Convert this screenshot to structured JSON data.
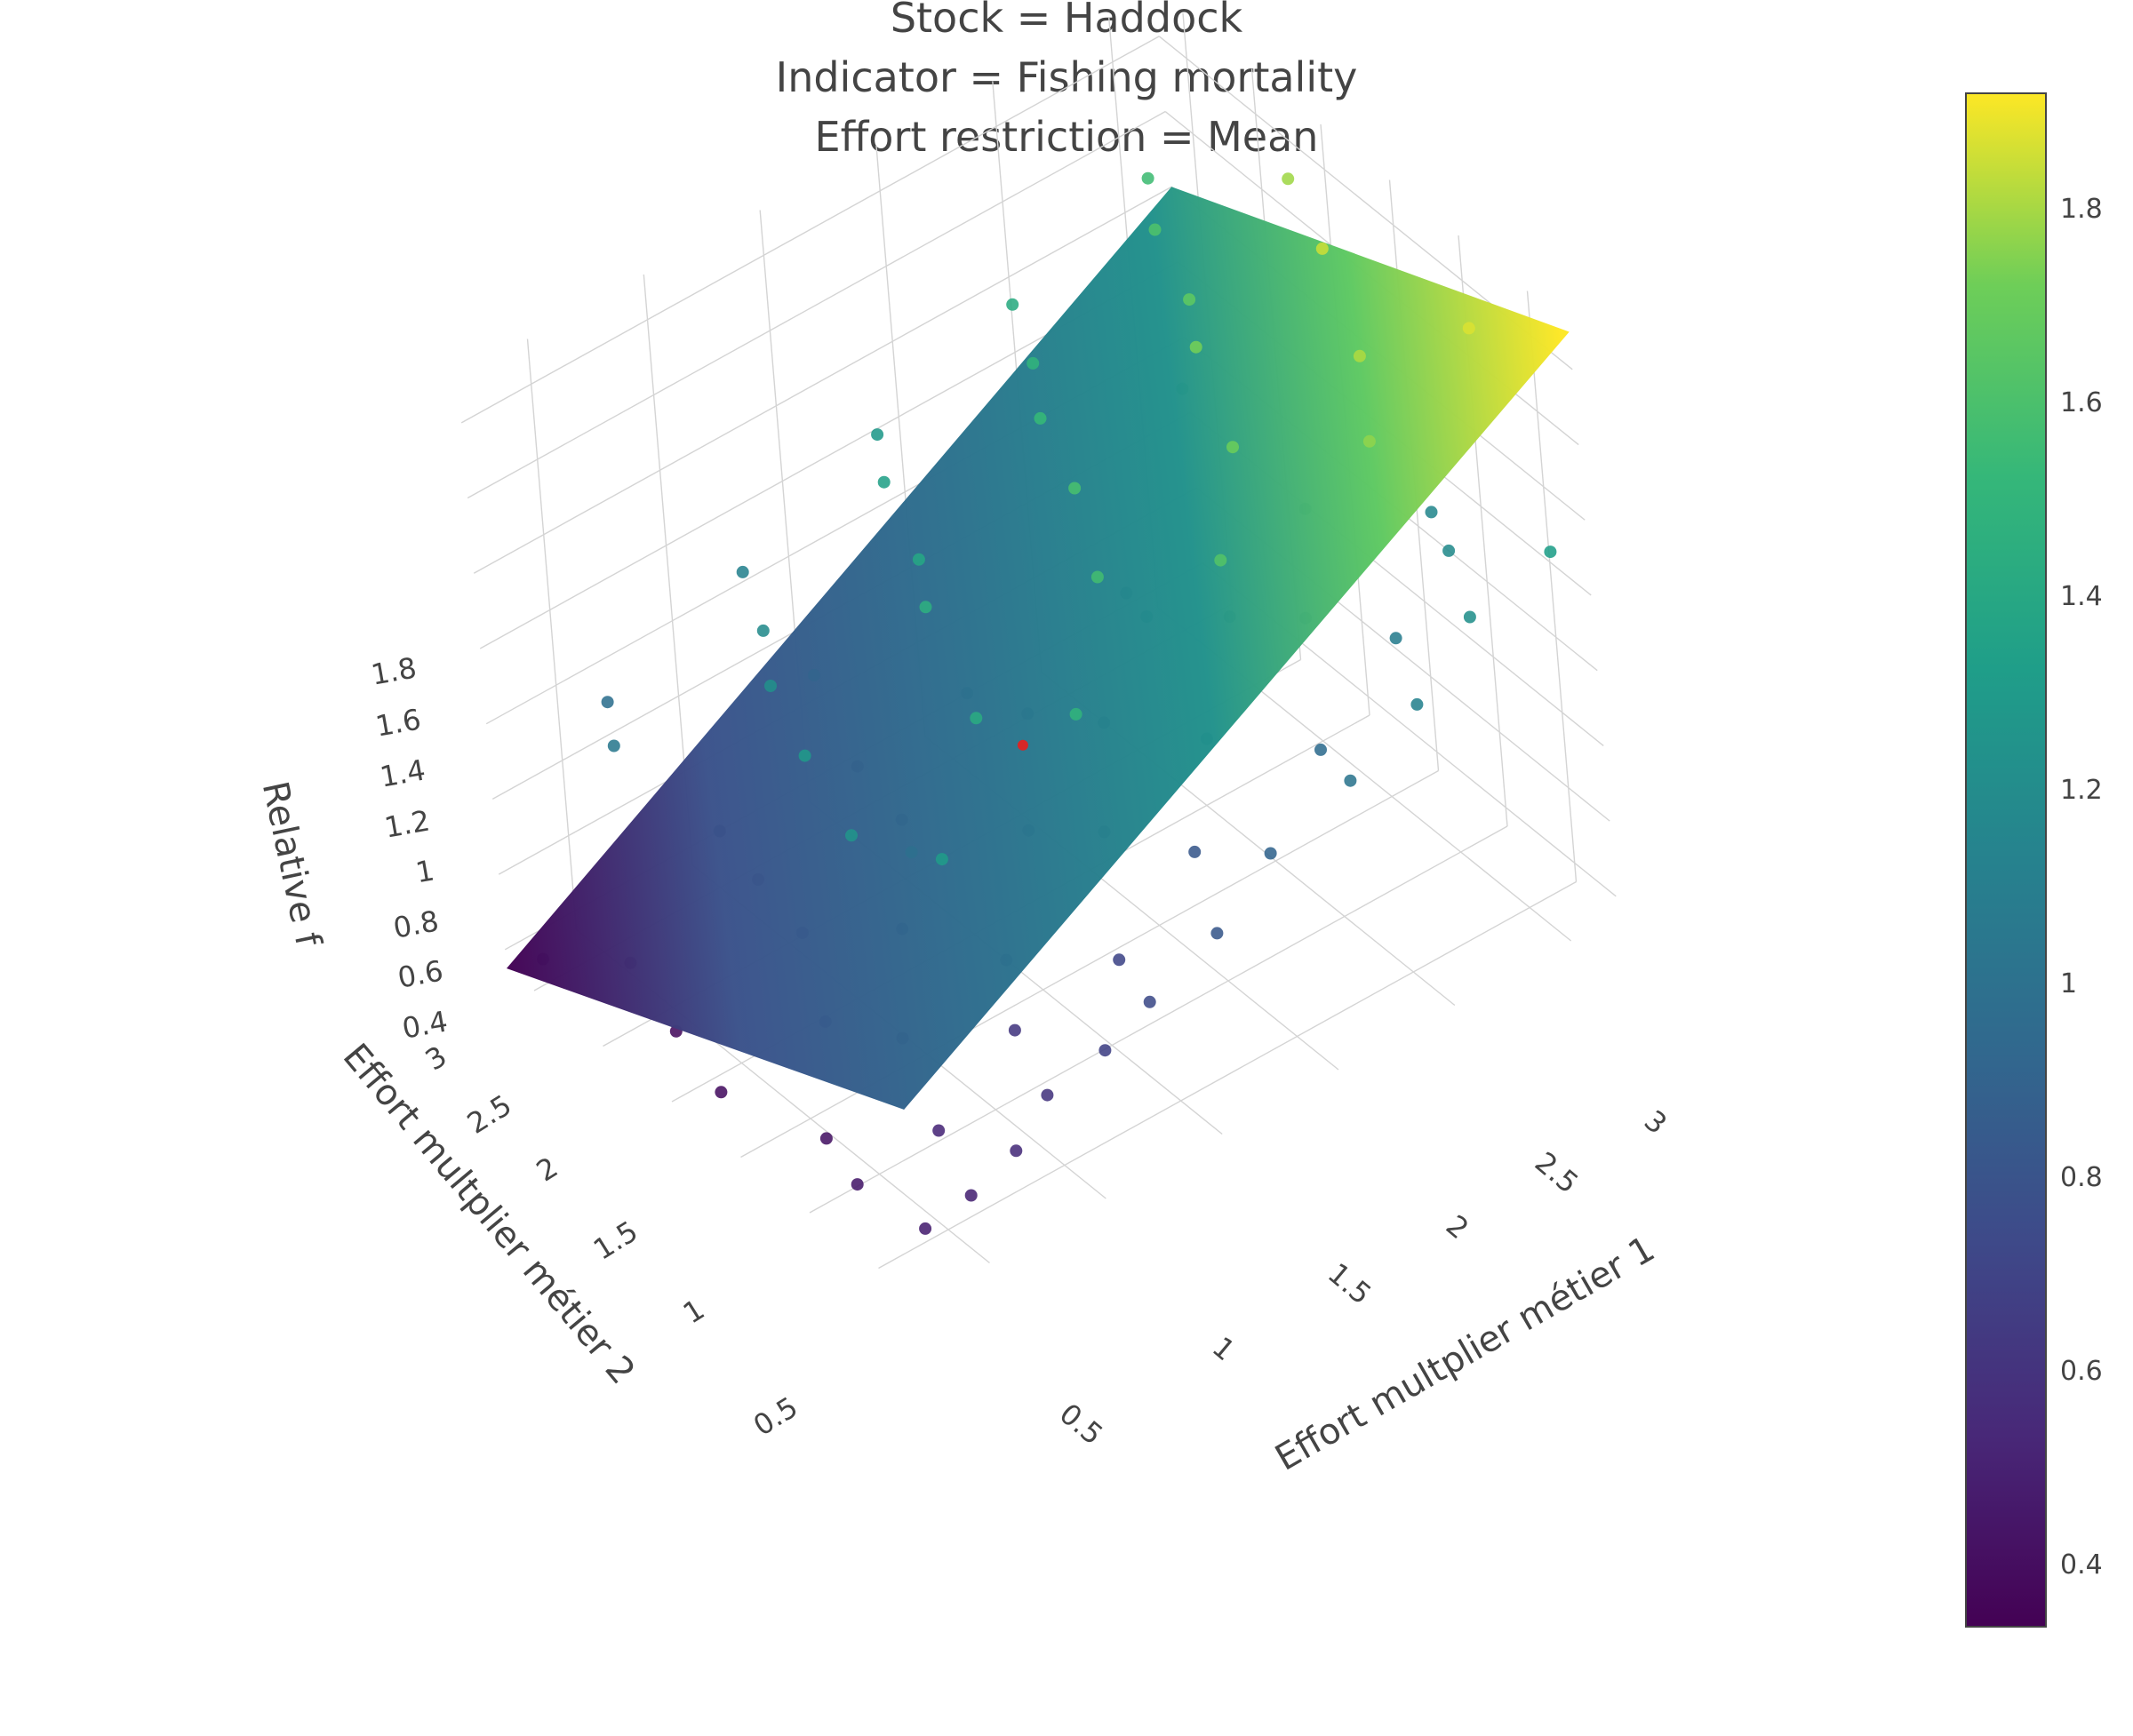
{
  "chart_data": {
    "type": "scatter",
    "title_lines": [
      "Stock = Haddock",
      "Indicator = Fishing mortality",
      "Effort restriction = Mean"
    ],
    "xlabel": "Effort multplier métier 1",
    "ylabel": "Effort multplier métier 2",
    "zlabel": "Relative f",
    "x_ticks": [
      "0.5",
      "1",
      "1.5",
      "2",
      "2.5",
      "3"
    ],
    "y_ticks": [
      "0.5",
      "1",
      "1.5",
      "2",
      "2.5",
      "3"
    ],
    "z_ticks": [
      "0.4",
      "0.6",
      "0.8",
      "1",
      "1.2",
      "1.4",
      "1.6",
      "1.8"
    ],
    "xlim": [
      0.2,
      3.2
    ],
    "ylim": [
      0.2,
      3.2
    ],
    "zlim": [
      0.35,
      1.92
    ],
    "surface": {
      "name": "fitted plane",
      "corners": [
        {
          "x": 0.2,
          "y": 0.2,
          "z": 0.86
        },
        {
          "x": 3.2,
          "y": 0.2,
          "z": 1.9
        },
        {
          "x": 3.2,
          "y": 3.2,
          "z": 1.4
        },
        {
          "x": 0.2,
          "y": 3.2,
          "z": 0.35
        }
      ]
    },
    "colorscale": "Viridis",
    "colorbar": {
      "range": [
        0.33,
        1.91
      ],
      "ticks": [
        "0.4",
        "0.6",
        "0.8",
        "1",
        "1.2",
        "1.4",
        "1.6",
        "1.8"
      ]
    },
    "highlight_point": {
      "x": 1.5,
      "y": 1.5,
      "z": 1.0,
      "color": "#d62728"
    },
    "points": [
      {
        "x": 0.3,
        "y": 0.3,
        "z": 0.48
      },
      {
        "x": 0.5,
        "y": 0.3,
        "z": 0.5
      },
      {
        "x": 0.7,
        "y": 0.3,
        "z": 0.55
      },
      {
        "x": 0.9,
        "y": 0.4,
        "z": 0.6
      },
      {
        "x": 1.1,
        "y": 0.3,
        "z": 0.68
      },
      {
        "x": 1.3,
        "y": 0.3,
        "z": 0.74
      },
      {
        "x": 1.6,
        "y": 0.3,
        "z": 0.82
      },
      {
        "x": 1.9,
        "y": 0.4,
        "z": 0.9
      },
      {
        "x": 2.2,
        "y": 0.3,
        "z": 1.02
      },
      {
        "x": 2.5,
        "y": 0.3,
        "z": 1.12
      },
      {
        "x": 2.8,
        "y": 0.4,
        "z": 1.22
      },
      {
        "x": 3.1,
        "y": 0.3,
        "z": 1.32
      },
      {
        "x": 0.3,
        "y": 0.8,
        "z": 0.45
      },
      {
        "x": 0.6,
        "y": 0.7,
        "z": 0.52
      },
      {
        "x": 1.0,
        "y": 0.8,
        "z": 0.62
      },
      {
        "x": 1.4,
        "y": 0.7,
        "z": 0.7
      },
      {
        "x": 1.8,
        "y": 0.8,
        "z": 0.82
      },
      {
        "x": 2.3,
        "y": 0.7,
        "z": 0.95
      },
      {
        "x": 2.7,
        "y": 0.8,
        "z": 1.08
      },
      {
        "x": 3.0,
        "y": 0.9,
        "z": 1.18
      },
      {
        "x": 0.4,
        "y": 1.2,
        "z": 0.42
      },
      {
        "x": 0.8,
        "y": 1.3,
        "z": 0.52
      },
      {
        "x": 1.2,
        "y": 1.2,
        "z": 0.62
      },
      {
        "x": 1.7,
        "y": 1.3,
        "z": 0.76
      },
      {
        "x": 2.1,
        "y": 1.2,
        "z": 0.9
      },
      {
        "x": 2.6,
        "y": 1.3,
        "z": 1.02
      },
      {
        "x": 3.1,
        "y": 1.2,
        "z": 1.16
      },
      {
        "x": 0.3,
        "y": 1.8,
        "z": 0.4
      },
      {
        "x": 0.7,
        "y": 1.7,
        "z": 0.48
      },
      {
        "x": 1.1,
        "y": 1.8,
        "z": 0.56
      },
      {
        "x": 1.6,
        "y": 1.7,
        "z": 0.68
      },
      {
        "x": 2.0,
        "y": 1.8,
        "z": 0.8
      },
      {
        "x": 2.5,
        "y": 1.7,
        "z": 0.94
      },
      {
        "x": 2.9,
        "y": 1.8,
        "z": 1.06
      },
      {
        "x": 0.4,
        "y": 2.3,
        "z": 0.38
      },
      {
        "x": 0.9,
        "y": 2.2,
        "z": 0.5
      },
      {
        "x": 1.4,
        "y": 2.3,
        "z": 0.6
      },
      {
        "x": 1.9,
        "y": 2.2,
        "z": 0.74
      },
      {
        "x": 2.4,
        "y": 2.3,
        "z": 0.86
      },
      {
        "x": 0.5,
        "y": 2.8,
        "z": 0.38
      },
      {
        "x": 1.0,
        "y": 2.7,
        "z": 0.46
      },
      {
        "x": 1.5,
        "y": 2.8,
        "z": 0.56
      },
      {
        "x": 0.3,
        "y": 3.1,
        "z": 0.37
      },
      {
        "x": 0.6,
        "y": 0.5,
        "z": 1.3
      },
      {
        "x": 1.2,
        "y": 0.5,
        "z": 1.48
      },
      {
        "x": 1.9,
        "y": 0.6,
        "z": 1.62
      },
      {
        "x": 2.5,
        "y": 0.5,
        "z": 1.76
      },
      {
        "x": 3.0,
        "y": 0.6,
        "z": 1.86
      },
      {
        "x": 2.7,
        "y": 0.9,
        "z": 1.8
      },
      {
        "x": 2.2,
        "y": 1.0,
        "z": 1.7
      },
      {
        "x": 1.6,
        "y": 1.0,
        "z": 1.56
      },
      {
        "x": 1.0,
        "y": 0.9,
        "z": 1.42
      },
      {
        "x": 0.5,
        "y": 1.0,
        "z": 1.25
      },
      {
        "x": 2.9,
        "y": 1.5,
        "z": 1.84
      },
      {
        "x": 2.4,
        "y": 1.6,
        "z": 1.72
      },
      {
        "x": 1.8,
        "y": 1.5,
        "z": 1.58
      },
      {
        "x": 1.2,
        "y": 1.6,
        "z": 1.44
      },
      {
        "x": 0.6,
        "y": 1.5,
        "z": 1.28
      },
      {
        "x": 3.1,
        "y": 2.1,
        "z": 1.78
      },
      {
        "x": 2.6,
        "y": 2.0,
        "z": 1.66
      },
      {
        "x": 2.0,
        "y": 2.1,
        "z": 1.52
      },
      {
        "x": 1.4,
        "y": 2.0,
        "z": 1.38
      },
      {
        "x": 0.8,
        "y": 2.1,
        "z": 1.22
      },
      {
        "x": 2.8,
        "y": 2.6,
        "z": 1.6
      },
      {
        "x": 2.2,
        "y": 2.5,
        "z": 1.48
      },
      {
        "x": 1.6,
        "y": 2.6,
        "z": 1.34
      },
      {
        "x": 1.0,
        "y": 2.5,
        "z": 1.18
      },
      {
        "x": 0.4,
        "y": 2.6,
        "z": 1.05
      },
      {
        "x": 3.0,
        "y": 3.0,
        "z": 1.55
      },
      {
        "x": 2.4,
        "y": 3.0,
        "z": 1.42
      },
      {
        "x": 1.8,
        "y": 3.0,
        "z": 1.28
      },
      {
        "x": 1.2,
        "y": 3.0,
        "z": 1.12
      },
      {
        "x": 0.6,
        "y": 3.0,
        "z": 0.98
      },
      {
        "x": 0.9,
        "y": 1.3,
        "z": 0.98
      },
      {
        "x": 1.5,
        "y": 1.9,
        "z": 1.02
      },
      {
        "x": 2.0,
        "y": 1.4,
        "z": 1.2
      },
      {
        "x": 2.7,
        "y": 2.3,
        "z": 1.3
      },
      {
        "x": 1.3,
        "y": 2.7,
        "z": 0.9
      },
      {
        "x": 0.7,
        "y": 2.4,
        "z": 0.78
      }
    ]
  }
}
